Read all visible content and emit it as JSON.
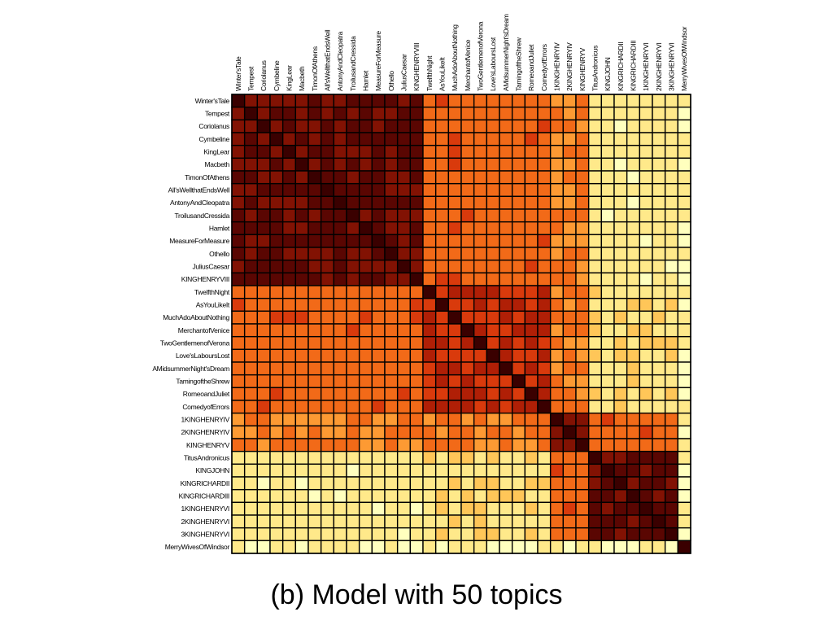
{
  "caption": "(b) Model with 50 topics",
  "colors": {
    "scale": [
      "#ffffbe",
      "#ffe98a",
      "#ffc658",
      "#fd9a33",
      "#f26a18",
      "#d93a0c",
      "#b01f06",
      "#821203",
      "#5a0602",
      "#3a0000"
    ],
    "grid_line": "#000000"
  },
  "chart_data": {
    "type": "heatmap",
    "title": "",
    "labels": [
      "Winter'sTale",
      "Tempest",
      "Coriolanus",
      "Cymbeline",
      "KingLear",
      "Macbeth",
      "TimonOfAthens",
      "All'sWellthatEndsWell",
      "AntonyAndCleopatra",
      "TroilusandCressida",
      "Hamlet",
      "MeasureForMeasure",
      "Othello",
      "JuliusCaesar",
      "KINGHENRYVIII",
      "TwelfthNight",
      "AsYouLikeIt",
      "MuchAdoAboutNothing",
      "MerchantofVenice",
      "TwoGentlemenofVerona",
      "Love'sLaboursLost",
      "AMidsummerNight'sDream",
      "TamingoftheShrew",
      "RomeoandJuliet",
      "ComedyofErrors",
      "1KINGHENRYIV",
      "2KINGHENRYIV",
      "KINGHENRYV",
      "TitusAndronicus",
      "KINGJOHN",
      "KINGRICHARDII",
      "KINGRICHARDIII",
      "1KINGHENRYVI",
      "2KINGHENRYVI",
      "3KINGHENRYVI",
      "MerryWivesOfWindsor"
    ],
    "groups": [
      {
        "start": 0,
        "end": 14,
        "value": 0.85
      },
      {
        "start": 15,
        "end": 24,
        "value": 0.6
      },
      {
        "start": 25,
        "end": 27,
        "value": 0.8
      },
      {
        "start": 28,
        "end": 34,
        "value": 0.85
      },
      {
        "start": 35,
        "end": 35,
        "value": 0.95
      }
    ],
    "between_group_values": [
      [
        0.0,
        0.45,
        0.4,
        0.1,
        0.05
      ],
      [
        0.45,
        0.0,
        0.4,
        0.15,
        0.05
      ],
      [
        0.4,
        0.4,
        0.0,
        0.45,
        0.05
      ],
      [
        0.1,
        0.15,
        0.45,
        0.0,
        0.05
      ],
      [
        0.05,
        0.05,
        0.05,
        0.05,
        0.0
      ]
    ],
    "value_range": [
      0,
      1
    ],
    "grid": true
  }
}
